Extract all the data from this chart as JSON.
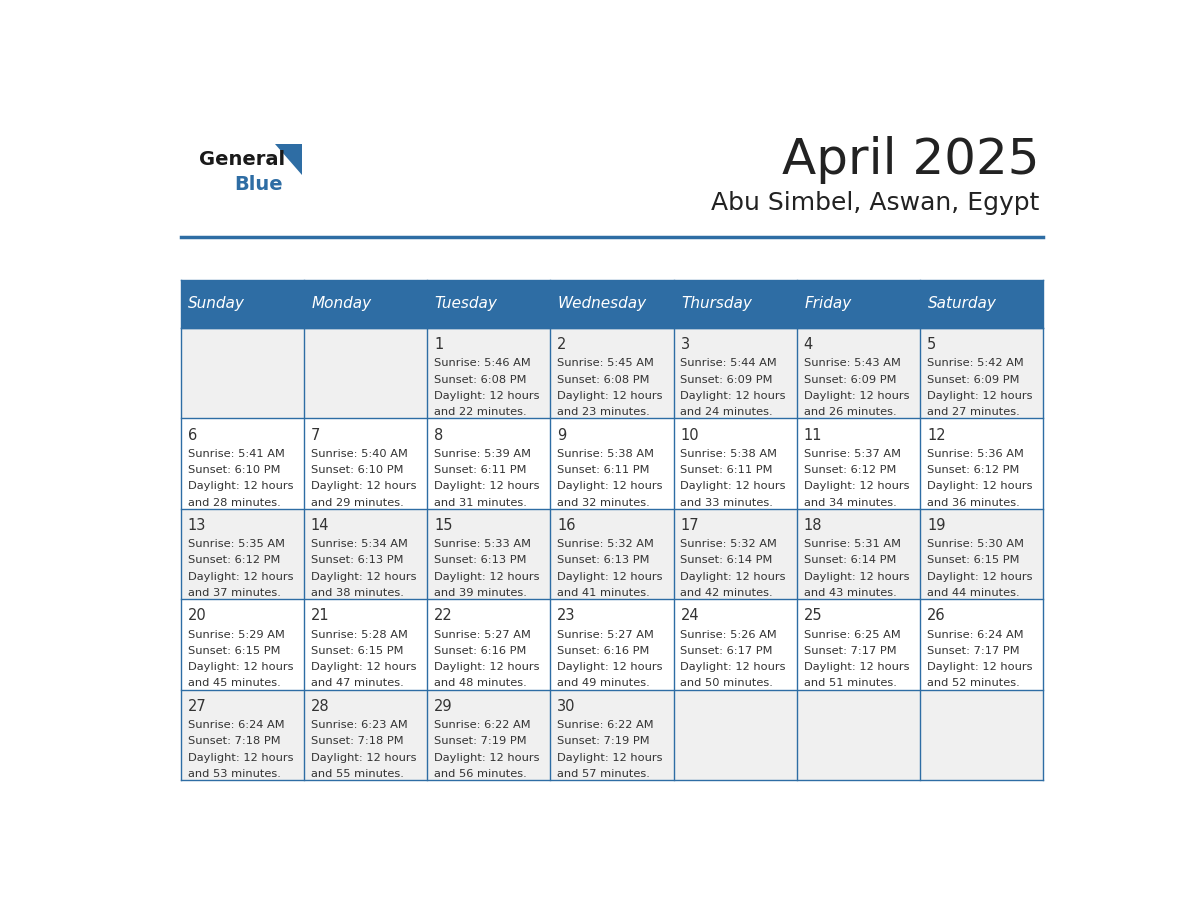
{
  "title": "April 2025",
  "subtitle": "Abu Simbel, Aswan, Egypt",
  "header_bg": "#2E6DA4",
  "header_text": "#FFFFFF",
  "row_bg_odd": "#F0F0F0",
  "row_bg_even": "#FFFFFF",
  "cell_text": "#333333",
  "day_headers": [
    "Sunday",
    "Monday",
    "Tuesday",
    "Wednesday",
    "Thursday",
    "Friday",
    "Saturday"
  ],
  "title_color": "#222222",
  "subtitle_color": "#222222",
  "logo_general_color": "#1a1a1a",
  "logo_blue_color": "#2E6DA4",
  "border_color": "#2E6DA4",
  "days": [
    {
      "date": 1,
      "col": 2,
      "row": 0,
      "sunrise": "5:46 AM",
      "sunset": "6:08 PM",
      "daylight": "12 hours and 22 minutes."
    },
    {
      "date": 2,
      "col": 3,
      "row": 0,
      "sunrise": "5:45 AM",
      "sunset": "6:08 PM",
      "daylight": "12 hours and 23 minutes."
    },
    {
      "date": 3,
      "col": 4,
      "row": 0,
      "sunrise": "5:44 AM",
      "sunset": "6:09 PM",
      "daylight": "12 hours and 24 minutes."
    },
    {
      "date": 4,
      "col": 5,
      "row": 0,
      "sunrise": "5:43 AM",
      "sunset": "6:09 PM",
      "daylight": "12 hours and 26 minutes."
    },
    {
      "date": 5,
      "col": 6,
      "row": 0,
      "sunrise": "5:42 AM",
      "sunset": "6:09 PM",
      "daylight": "12 hours and 27 minutes."
    },
    {
      "date": 6,
      "col": 0,
      "row": 1,
      "sunrise": "5:41 AM",
      "sunset": "6:10 PM",
      "daylight": "12 hours and 28 minutes."
    },
    {
      "date": 7,
      "col": 1,
      "row": 1,
      "sunrise": "5:40 AM",
      "sunset": "6:10 PM",
      "daylight": "12 hours and 29 minutes."
    },
    {
      "date": 8,
      "col": 2,
      "row": 1,
      "sunrise": "5:39 AM",
      "sunset": "6:11 PM",
      "daylight": "12 hours and 31 minutes."
    },
    {
      "date": 9,
      "col": 3,
      "row": 1,
      "sunrise": "5:38 AM",
      "sunset": "6:11 PM",
      "daylight": "12 hours and 32 minutes."
    },
    {
      "date": 10,
      "col": 4,
      "row": 1,
      "sunrise": "5:38 AM",
      "sunset": "6:11 PM",
      "daylight": "12 hours and 33 minutes."
    },
    {
      "date": 11,
      "col": 5,
      "row": 1,
      "sunrise": "5:37 AM",
      "sunset": "6:12 PM",
      "daylight": "12 hours and 34 minutes."
    },
    {
      "date": 12,
      "col": 6,
      "row": 1,
      "sunrise": "5:36 AM",
      "sunset": "6:12 PM",
      "daylight": "12 hours and 36 minutes."
    },
    {
      "date": 13,
      "col": 0,
      "row": 2,
      "sunrise": "5:35 AM",
      "sunset": "6:12 PM",
      "daylight": "12 hours and 37 minutes."
    },
    {
      "date": 14,
      "col": 1,
      "row": 2,
      "sunrise": "5:34 AM",
      "sunset": "6:13 PM",
      "daylight": "12 hours and 38 minutes."
    },
    {
      "date": 15,
      "col": 2,
      "row": 2,
      "sunrise": "5:33 AM",
      "sunset": "6:13 PM",
      "daylight": "12 hours and 39 minutes."
    },
    {
      "date": 16,
      "col": 3,
      "row": 2,
      "sunrise": "5:32 AM",
      "sunset": "6:13 PM",
      "daylight": "12 hours and 41 minutes."
    },
    {
      "date": 17,
      "col": 4,
      "row": 2,
      "sunrise": "5:32 AM",
      "sunset": "6:14 PM",
      "daylight": "12 hours and 42 minutes."
    },
    {
      "date": 18,
      "col": 5,
      "row": 2,
      "sunrise": "5:31 AM",
      "sunset": "6:14 PM",
      "daylight": "12 hours and 43 minutes."
    },
    {
      "date": 19,
      "col": 6,
      "row": 2,
      "sunrise": "5:30 AM",
      "sunset": "6:15 PM",
      "daylight": "12 hours and 44 minutes."
    },
    {
      "date": 20,
      "col": 0,
      "row": 3,
      "sunrise": "5:29 AM",
      "sunset": "6:15 PM",
      "daylight": "12 hours and 45 minutes."
    },
    {
      "date": 21,
      "col": 1,
      "row": 3,
      "sunrise": "5:28 AM",
      "sunset": "6:15 PM",
      "daylight": "12 hours and 47 minutes."
    },
    {
      "date": 22,
      "col": 2,
      "row": 3,
      "sunrise": "5:27 AM",
      "sunset": "6:16 PM",
      "daylight": "12 hours and 48 minutes."
    },
    {
      "date": 23,
      "col": 3,
      "row": 3,
      "sunrise": "5:27 AM",
      "sunset": "6:16 PM",
      "daylight": "12 hours and 49 minutes."
    },
    {
      "date": 24,
      "col": 4,
      "row": 3,
      "sunrise": "5:26 AM",
      "sunset": "6:17 PM",
      "daylight": "12 hours and 50 minutes."
    },
    {
      "date": 25,
      "col": 5,
      "row": 3,
      "sunrise": "6:25 AM",
      "sunset": "7:17 PM",
      "daylight": "12 hours and 51 minutes."
    },
    {
      "date": 26,
      "col": 6,
      "row": 3,
      "sunrise": "6:24 AM",
      "sunset": "7:17 PM",
      "daylight": "12 hours and 52 minutes."
    },
    {
      "date": 27,
      "col": 0,
      "row": 4,
      "sunrise": "6:24 AM",
      "sunset": "7:18 PM",
      "daylight": "12 hours and 53 minutes."
    },
    {
      "date": 28,
      "col": 1,
      "row": 4,
      "sunrise": "6:23 AM",
      "sunset": "7:18 PM",
      "daylight": "12 hours and 55 minutes."
    },
    {
      "date": 29,
      "col": 2,
      "row": 4,
      "sunrise": "6:22 AM",
      "sunset": "7:19 PM",
      "daylight": "12 hours and 56 minutes."
    },
    {
      "date": 30,
      "col": 3,
      "row": 4,
      "sunrise": "6:22 AM",
      "sunset": "7:19 PM",
      "daylight": "12 hours and 57 minutes."
    }
  ]
}
